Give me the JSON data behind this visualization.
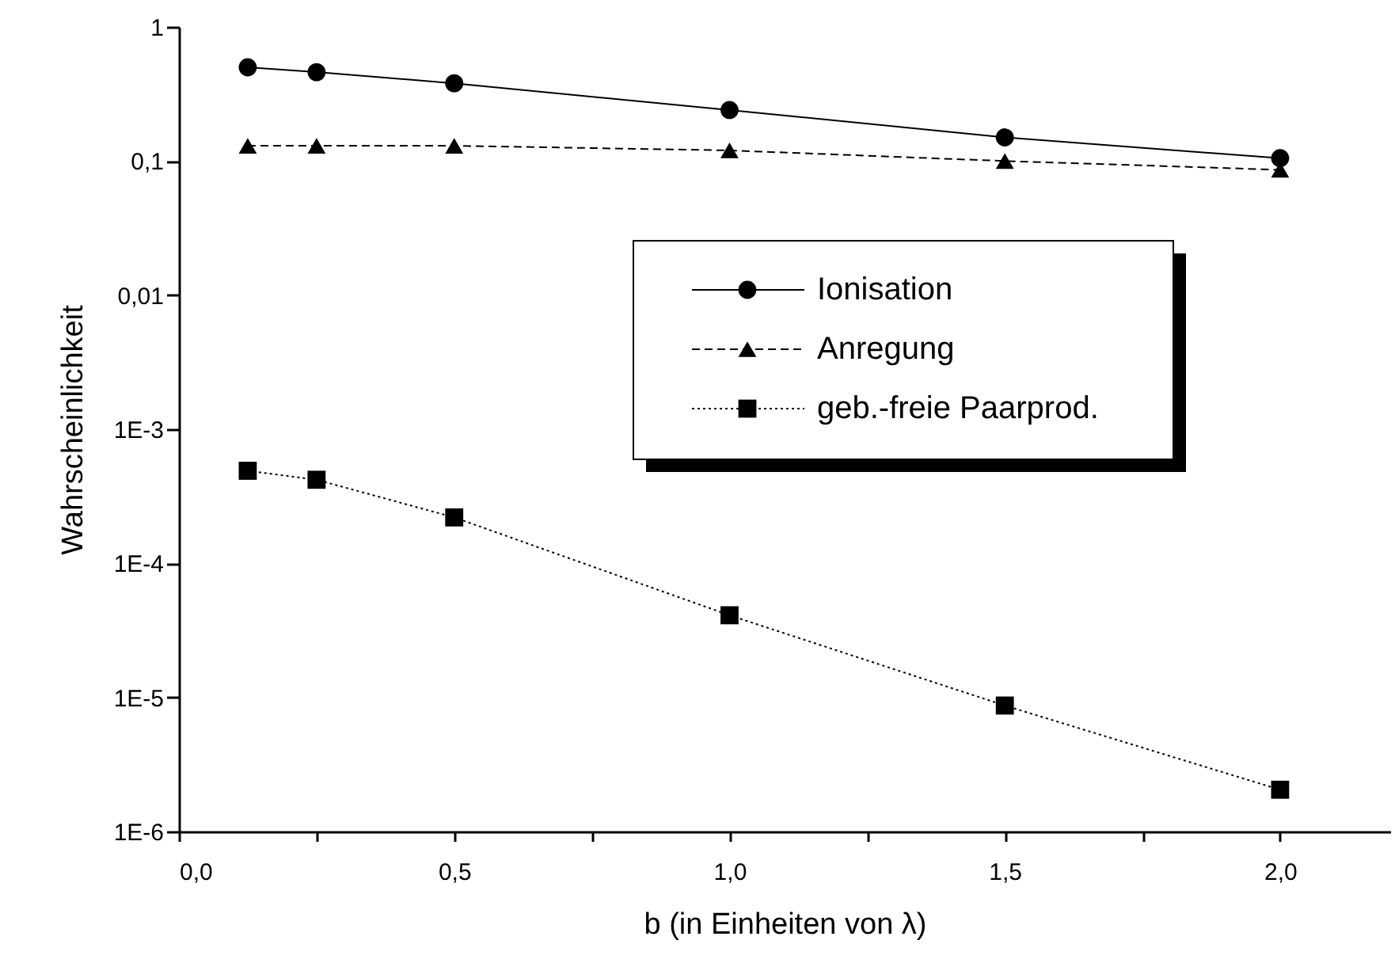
{
  "chart_data": {
    "type": "line",
    "xlabel": "b (in Einheiten von λ)",
    "ylabel": "Wahrscheinlichkeit",
    "x": [
      0.125,
      0.25,
      0.5,
      1.0,
      1.5,
      2.0
    ],
    "series": [
      {
        "name": "Ionisation",
        "color": "#000000",
        "marker": "circle",
        "line_style": "solid",
        "values": [
          0.5,
          0.46,
          0.38,
          0.24,
          0.15,
          0.105
        ]
      },
      {
        "name": "Anregung",
        "color": "#000000",
        "marker": "triangle",
        "line_style": "dashed",
        "values": [
          0.13,
          0.13,
          0.13,
          0.12,
          0.1,
          0.086
        ]
      },
      {
        "name": "geb.-freie Paarprod.",
        "color": "#000000",
        "marker": "square",
        "line_style": "dotted",
        "values": [
          0.00049,
          0.00042,
          0.00022,
          4.1e-05,
          8.7e-06,
          2.05e-06
        ]
      }
    ],
    "log": "y",
    "xlim": [
      0,
      2.2
    ],
    "ylim": [
      1e-06,
      1
    ],
    "xticks": [
      {
        "value": 0,
        "label": "0,0"
      },
      {
        "value": 0.25,
        "label": null
      },
      {
        "value": 0.5,
        "label": "0,5"
      },
      {
        "value": 0.75,
        "label": null
      },
      {
        "value": 1,
        "label": "1,0"
      },
      {
        "value": 1.25,
        "label": null
      },
      {
        "value": 1.5,
        "label": "1,5"
      },
      {
        "value": 1.75,
        "label": null
      },
      {
        "value": 2,
        "label": "2,0"
      }
    ],
    "yticks": [
      {
        "value": 1e-06,
        "label": "1E-6"
      },
      {
        "value": 1e-05,
        "label": "1E-5"
      },
      {
        "value": 0.0001,
        "label": "1E-4"
      },
      {
        "value": 0.001,
        "label": "1E-3"
      },
      {
        "value": 0.01,
        "label": "0,01"
      },
      {
        "value": 0.1,
        "label": "0,1"
      },
      1
    ],
    "grid": false,
    "legend": "right"
  }
}
